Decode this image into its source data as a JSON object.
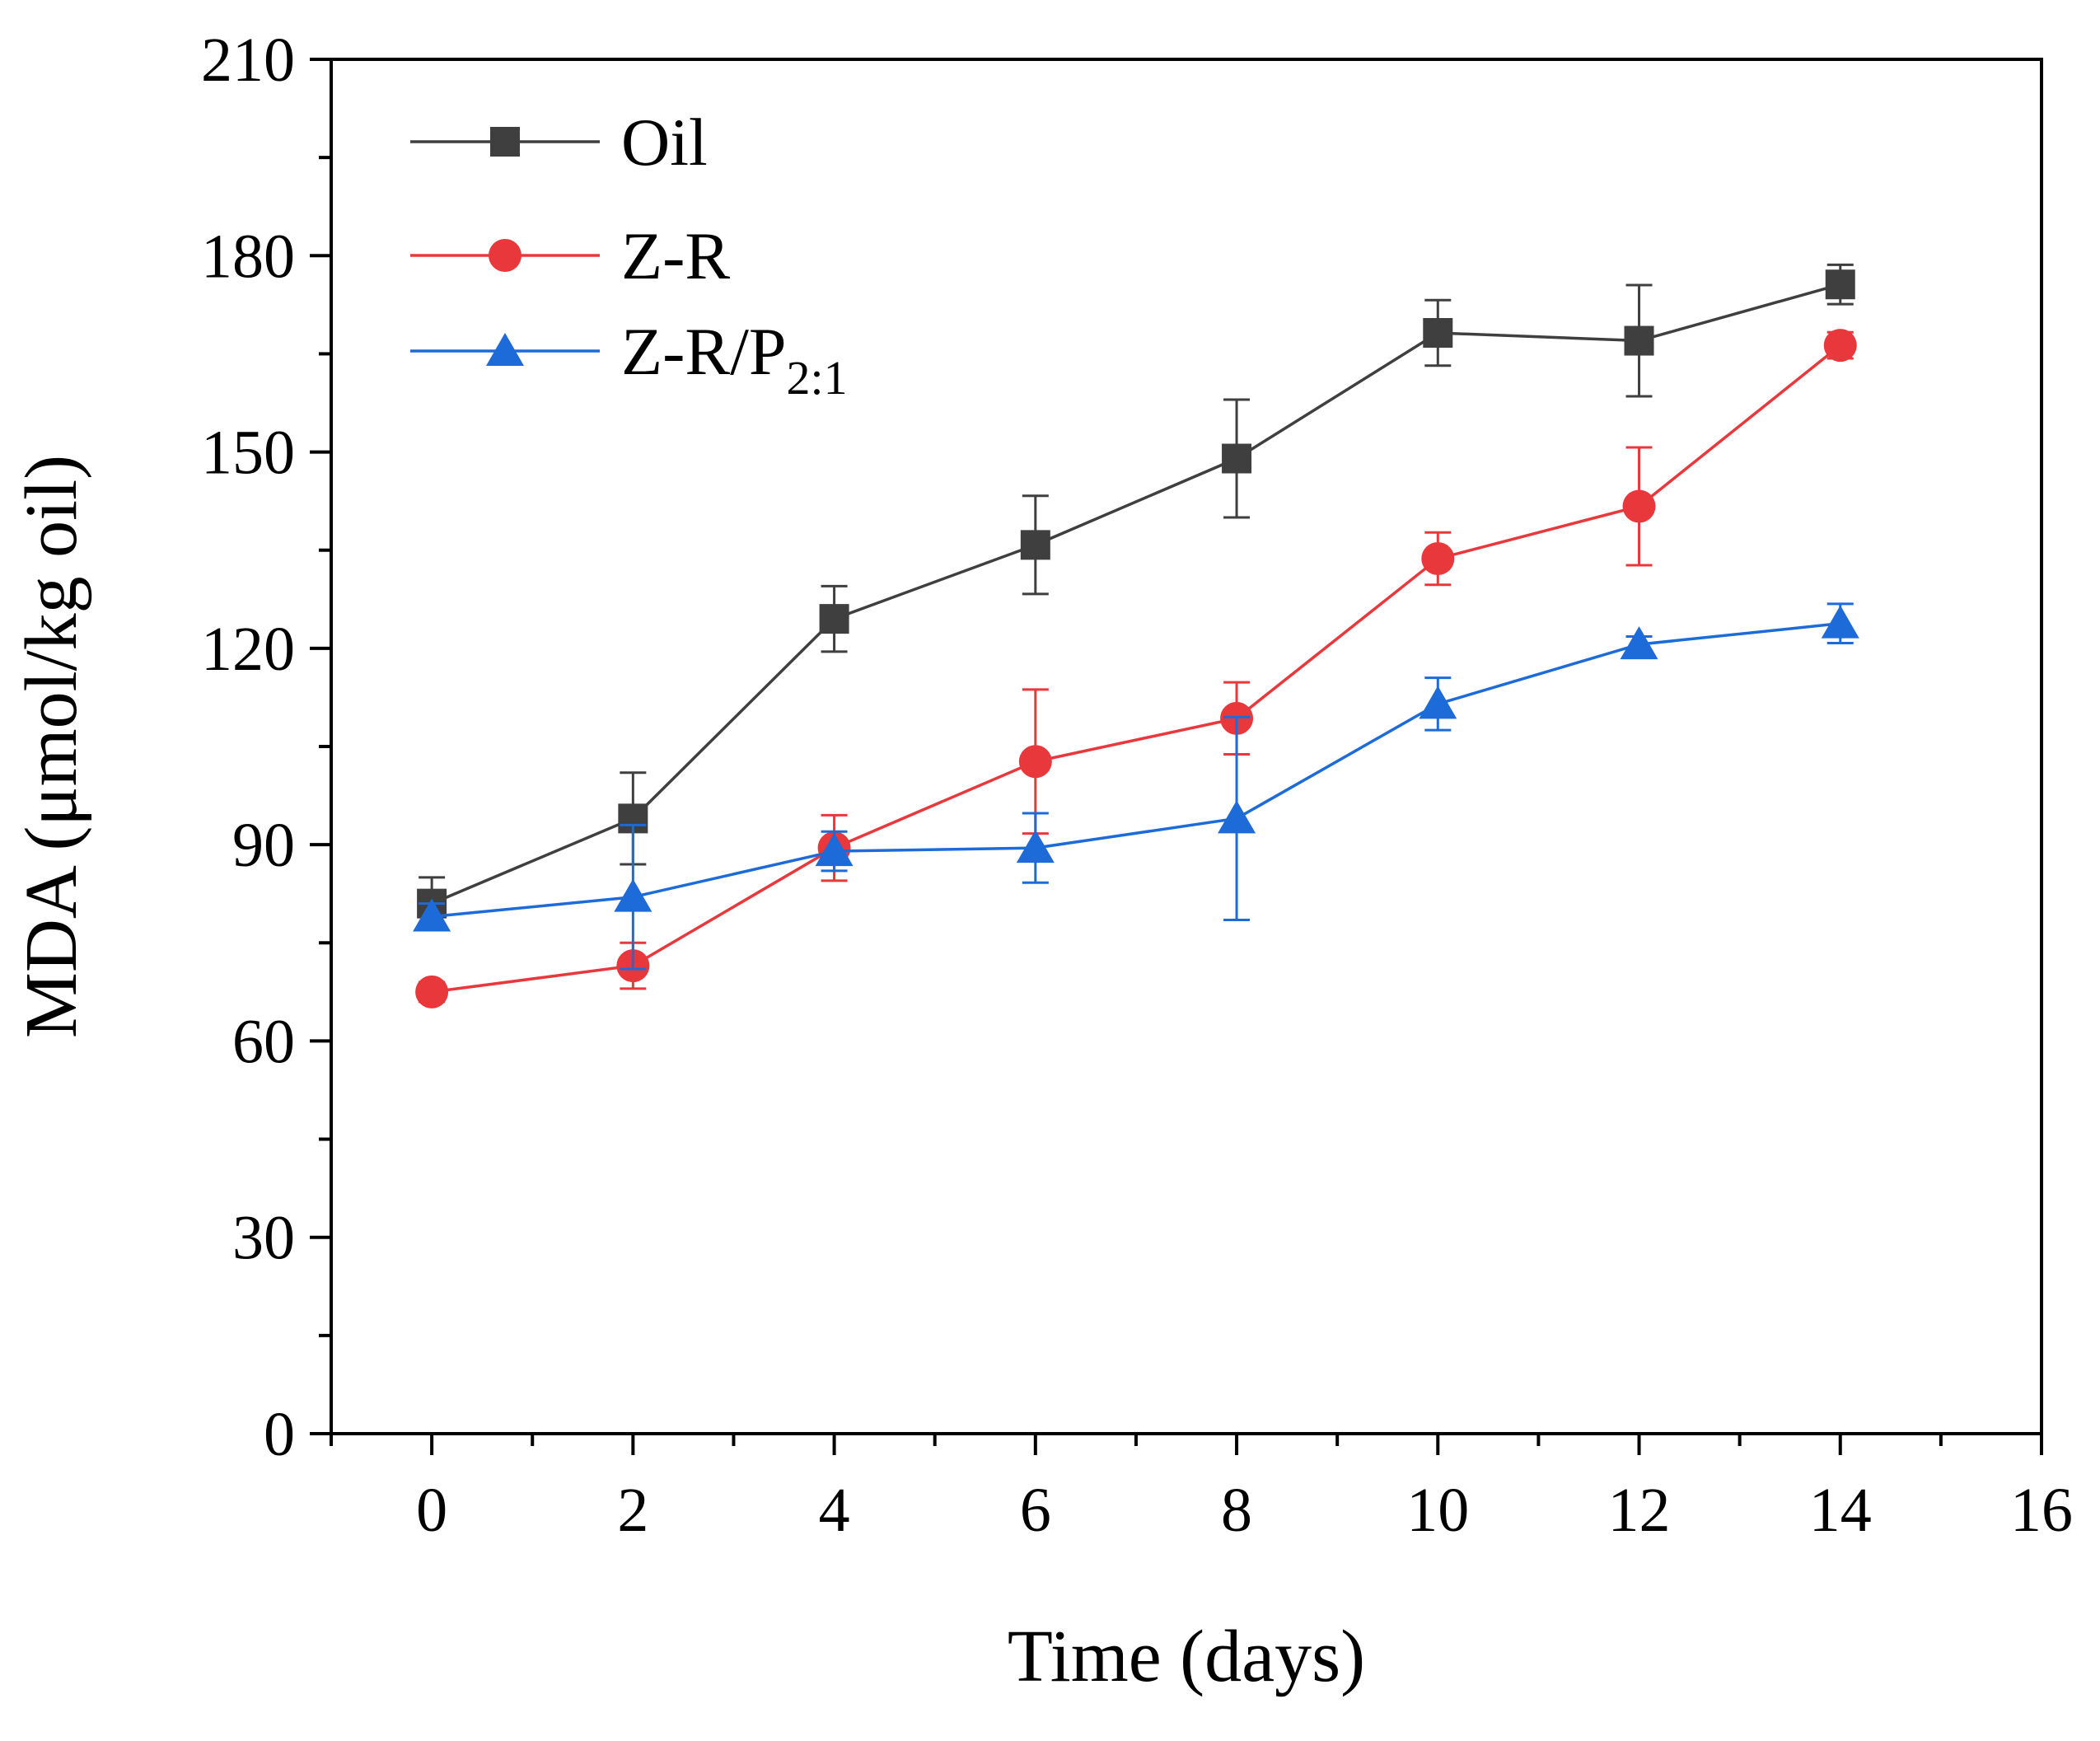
{
  "chart_data": {
    "type": "line",
    "title": "",
    "xlabel": "Time (days)",
    "ylabel": "MDA (μmol/kg oil)",
    "xlim": [
      -1,
      16
    ],
    "ylim": [
      0,
      210
    ],
    "xticks": [
      0,
      2,
      4,
      6,
      8,
      10,
      12,
      14,
      16
    ],
    "yticks": [
      0,
      30,
      60,
      90,
      120,
      150,
      180,
      210
    ],
    "x_tick_labels": [
      "0",
      "2",
      "4",
      "6",
      "8",
      "10",
      "12",
      "14",
      "16"
    ],
    "y_tick_labels": [
      "0",
      "30",
      "60",
      "90",
      "120",
      "150",
      "180",
      "210"
    ],
    "grid": false,
    "legend_position": "top-left",
    "x": [
      0,
      2,
      4,
      6,
      8,
      10,
      12,
      14
    ],
    "series": [
      {
        "name": "Oil",
        "legend_main": "Oil",
        "legend_sub": "",
        "color": "#3f3f3f",
        "marker": "square",
        "values": [
          81,
          94,
          124.5,
          135.8,
          149,
          168.2,
          167,
          175.6
        ],
        "errors": [
          4,
          7,
          5,
          7.5,
          9,
          5,
          8.5,
          3
        ]
      },
      {
        "name": "Z-R",
        "legend_main": "Z-R",
        "legend_sub": "",
        "color": "#e8383c",
        "marker": "circle",
        "values": [
          67.5,
          71.5,
          89.5,
          102.7,
          109.3,
          133.7,
          141.7,
          166.3
        ],
        "errors": [
          1.5,
          3.5,
          5,
          11,
          5.5,
          4,
          9,
          2
        ]
      },
      {
        "name": "Z-R/P2:1",
        "legend_main": "Z-R/P",
        "legend_sub": "2:1",
        "color": "#1c6bd8",
        "marker": "triangle",
        "values": [
          79,
          82,
          89,
          89.5,
          94,
          111.5,
          120.6,
          123.8
        ],
        "errors": [
          2,
          11,
          3,
          5.3,
          15.5,
          4,
          1.2,
          3
        ]
      }
    ]
  }
}
